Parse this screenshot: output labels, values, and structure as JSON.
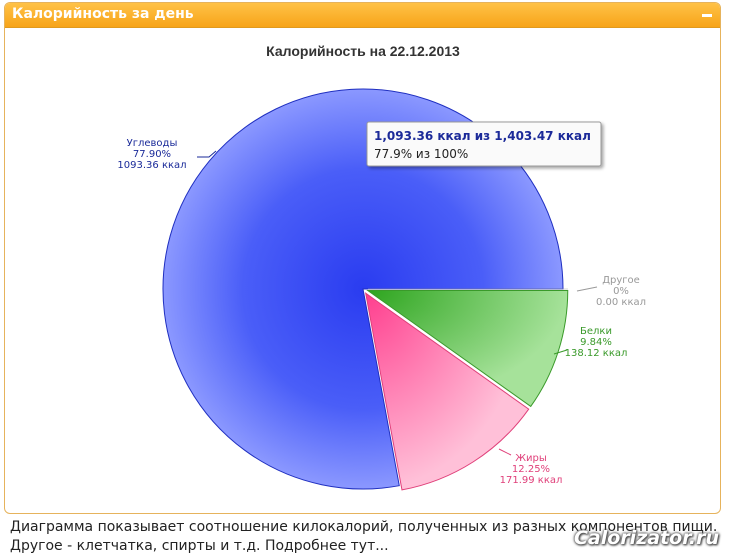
{
  "panel": {
    "title": "Калорийность за день",
    "collapse_icon": "minus-icon"
  },
  "chart_data": {
    "type": "pie",
    "title": "Калорийность на 22.12.2013",
    "slices": [
      {
        "name": "Углеводы",
        "percent_label": "77.90%",
        "value_label": "1093.36 ккал",
        "value": 1093.36,
        "color": "#3c50f5",
        "label_color": "#1a2a99"
      },
      {
        "name": "Другое",
        "percent_label": "0%",
        "value_label": "0.00 ккал",
        "value": 0.0,
        "color": "#aaaaaa",
        "label_color": "#999999"
      },
      {
        "name": "Белки",
        "percent_label": "9.84%",
        "value_label": "138.12 ккал",
        "value": 138.12,
        "color": "#46b23a",
        "label_color": "#3a9a2a"
      },
      {
        "name": "Жиры",
        "percent_label": "12.25%",
        "value_label": "171.99 ккал",
        "value": 171.99,
        "color": "#ff5c9d",
        "label_color": "#e0407a"
      }
    ],
    "tooltip": {
      "line1": "1,093.36 ккал из 1,403.47 ккал",
      "line2": "77.9% из 100%"
    }
  },
  "footer": {
    "line1": "Диаграмма показывает соотношение килокалорий, полученных из разных компонентов пищи.",
    "line2": "Другое - клетчатка, спирты и т.д. Подробнее тут..."
  },
  "watermark": "Calorizator.ru"
}
